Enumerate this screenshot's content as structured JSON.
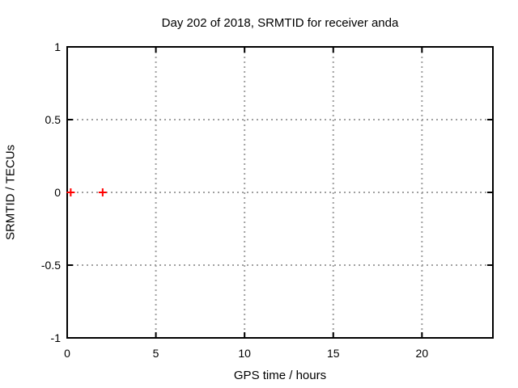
{
  "chart_data": {
    "type": "scatter",
    "title": "Day 202 of 2018, SRMTID for receiver anda",
    "xlabel": "GPS time / hours",
    "ylabel": "SRMTID / TECUs",
    "xlim": [
      0,
      24
    ],
    "ylim": [
      -1,
      1
    ],
    "xticks": [
      0,
      5,
      10,
      15,
      20
    ],
    "yticks": [
      -1,
      -0.5,
      0,
      0.5,
      1
    ],
    "grid": true,
    "legend_position": "none",
    "colors": {
      "background": "#ffffff",
      "border": "#000000",
      "grid": "#a0a0a0",
      "text": "#000000"
    },
    "series": [
      {
        "name": "SRMTID",
        "marker": "plus",
        "color": "#ff0000",
        "points": [
          [
            0.2,
            0.0
          ],
          [
            2.0,
            0.0
          ]
        ]
      }
    ]
  }
}
